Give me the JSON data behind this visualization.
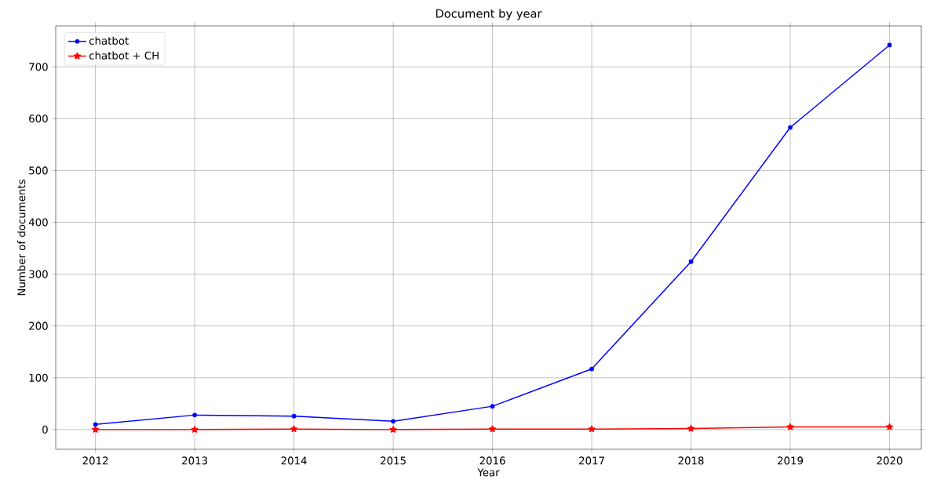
{
  "chart_data": {
    "type": "line",
    "title": "Document by year",
    "xlabel": "Year",
    "ylabel": "Number of documents",
    "x": [
      2012,
      2013,
      2014,
      2015,
      2016,
      2017,
      2018,
      2019,
      2020
    ],
    "series": [
      {
        "name": "chatbot",
        "color": "#0000ff",
        "marker": "circle",
        "values": [
          10,
          28,
          26,
          16,
          45,
          117,
          324,
          583,
          742
        ]
      },
      {
        "name": "chatbot + CH",
        "color": "#ff0000",
        "marker": "star",
        "values": [
          0,
          0,
          1,
          0,
          1,
          1,
          2,
          5,
          5
        ]
      }
    ],
    "xlim": [
      2011.6,
      2020.32
    ],
    "ylim": [
      -38,
      779
    ],
    "xticks": [
      2012,
      2013,
      2014,
      2015,
      2016,
      2017,
      2018,
      2019,
      2020
    ],
    "yticks": [
      0,
      100,
      200,
      300,
      400,
      500,
      600,
      700
    ],
    "grid": true,
    "legend": "top left",
    "line_style": "solid"
  }
}
